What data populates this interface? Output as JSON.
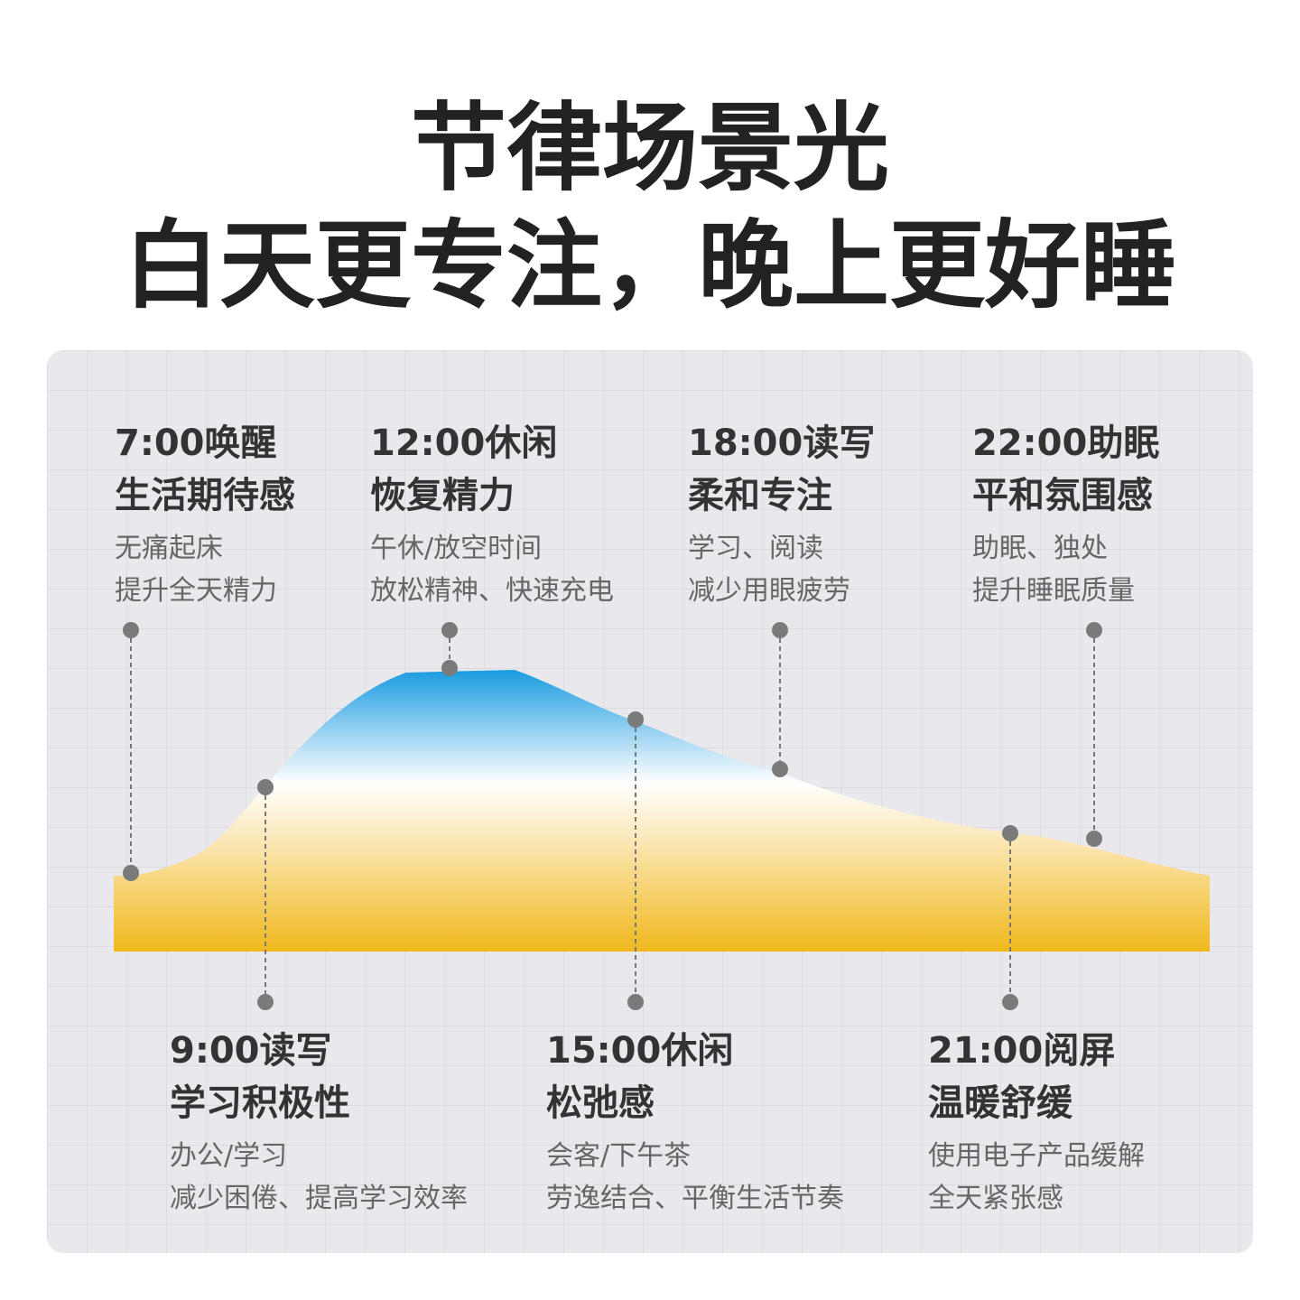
{
  "title": [
    "节律场景光",
    "白天更专注，晚上更好睡"
  ],
  "scenes": [
    {
      "time": "7:00唤醒",
      "subtitle": "生活期待感",
      "lines": [
        "无痛起床",
        "提升全天精力"
      ]
    },
    {
      "time": "9:00读写",
      "subtitle": "学习积极性",
      "lines": [
        "办公/学习",
        "减少困倦、提高学习效率"
      ]
    },
    {
      "time": "12:00休闲",
      "subtitle": "恢复精力",
      "lines": [
        "午休/放空时间",
        "放松精神、快速充电"
      ]
    },
    {
      "time": "15:00休闲",
      "subtitle": "松弛感",
      "lines": [
        "会客/下午茶",
        "劳逸结合、平衡生活节奏"
      ]
    },
    {
      "time": "18:00读写",
      "subtitle": "柔和专注",
      "lines": [
        "学习、阅读",
        "减少用眼疲劳"
      ]
    },
    {
      "time": "21:00阅屏",
      "subtitle": "温暖舒缓",
      "lines": [
        "使用电子产品缓解",
        "全天紧张感"
      ]
    },
    {
      "time": "22:00助眠",
      "subtitle": "平和氛围感",
      "lines": [
        "助眠、独处",
        "提升睡眠质量"
      ]
    }
  ]
}
